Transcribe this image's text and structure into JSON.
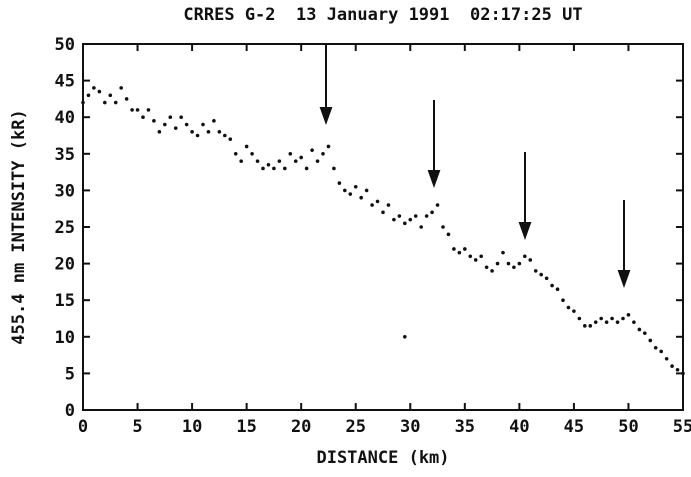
{
  "chart_data": {
    "type": "scatter",
    "title": "CRRES G-2  13 January 1991  02:17:25 UT",
    "x_label": "DISTANCE (km)",
    "y_label": "455.4 nm INTENSITY (kR)",
    "color": "#111111",
    "xlim": [
      0,
      55
    ],
    "xticks": [
      0,
      5,
      10,
      15,
      20,
      25,
      30,
      35,
      40,
      45,
      50,
      55
    ],
    "ylim": [
      0,
      50
    ],
    "yticks": [
      0,
      5,
      10,
      15,
      20,
      25,
      30,
      35,
      40,
      45,
      50
    ],
    "x": [
      0,
      0.5,
      1,
      1.5,
      2,
      2.5,
      3,
      3.5,
      4,
      4.5,
      5,
      5.5,
      6,
      6.5,
      7,
      7.5,
      8,
      8.5,
      9,
      9.5,
      10,
      10.5,
      11,
      11.5,
      12,
      12.5,
      13,
      13.5,
      14,
      14.5,
      15,
      15.5,
      16,
      16.5,
      17,
      17.5,
      18,
      18.5,
      19,
      19.5,
      20,
      20.5,
      21,
      21.5,
      22,
      22.5,
      23,
      23.5,
      24,
      24.5,
      25,
      25.5,
      26,
      26.5,
      27,
      27.5,
      28,
      28.5,
      29,
      29.5,
      30,
      30.5,
      31,
      31.5,
      32,
      32.5,
      33,
      33.5,
      34,
      34.5,
      35,
      35.5,
      36,
      36.5,
      37,
      37.5,
      38,
      38.5,
      39,
      39.5,
      40,
      40.5,
      41,
      41.5,
      42,
      42.5,
      43,
      43.5,
      44,
      44.5,
      45,
      45.5,
      46,
      46.5,
      47,
      47.5,
      48,
      48.5,
      49,
      49.5,
      50,
      50.5,
      51,
      51.5,
      52,
      52.5,
      53,
      53.5,
      54,
      54.5,
      55,
      29.5
    ],
    "values": [
      42,
      43,
      44,
      43.5,
      42,
      43,
      42,
      44,
      42.5,
      41,
      41,
      40,
      41,
      39.5,
      38,
      39,
      40,
      38.5,
      40,
      39,
      38,
      37.5,
      39,
      38,
      39.5,
      38,
      37.5,
      37,
      35,
      34,
      36,
      35,
      34,
      33,
      33.5,
      33,
      34,
      33,
      35,
      34,
      34.5,
      33,
      35.5,
      34,
      35,
      36,
      33,
      31,
      30,
      29.5,
      30.5,
      29,
      30,
      28,
      28.5,
      27,
      28,
      26,
      26.5,
      25.5,
      26,
      26.5,
      25,
      26.5,
      27,
      28,
      25,
      24,
      22,
      21.5,
      22,
      21,
      20.5,
      21,
      19.5,
      19,
      20,
      21.5,
      20,
      19.5,
      20,
      21,
      20.5,
      19,
      18.5,
      18,
      17,
      16.5,
      15,
      14,
      13.5,
      12.5,
      11.5,
      11.5,
      12,
      12.5,
      12,
      12.5,
      12,
      12.5,
      13,
      12,
      11,
      10.5,
      9.5,
      8.5,
      8,
      7,
      6,
      5.5,
      5,
      10
    ]
  }
}
